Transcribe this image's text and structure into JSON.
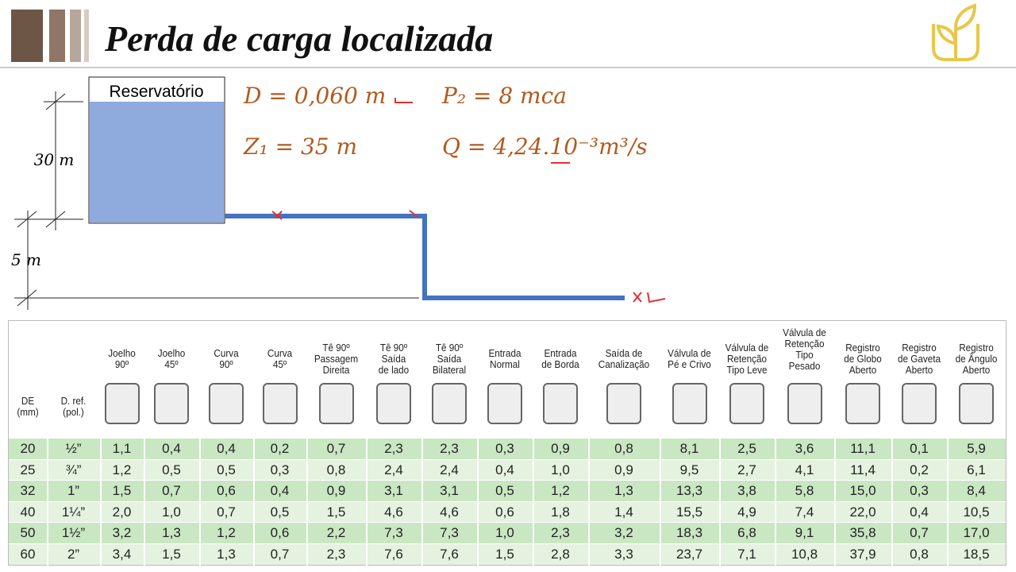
{
  "header": {
    "title": "Perda de carga localizada"
  },
  "diagram": {
    "reservoir": "Reservatório",
    "height_top": "30 m",
    "height_bottom": "5 m"
  },
  "equations": [
    "D = 0,060 m",
    "P₂ = 8 mca",
    "Z₁ = 35 m",
    "Q = 4,24.10⁻³m³/s"
  ],
  "table": {
    "headers": [
      [
        "DE",
        "(mm)"
      ],
      [
        "D. ref.",
        "(pol.)"
      ],
      [
        "Joelho",
        "90º"
      ],
      [
        "Joelho",
        "45º"
      ],
      [
        "Curva",
        "90º"
      ],
      [
        "Curva",
        "45º"
      ],
      [
        "Tê 90º",
        "Passagem",
        "Direita"
      ],
      [
        "Tê 90º",
        "Saída",
        "de lado"
      ],
      [
        "Tê 90º",
        "Saída",
        "Bilateral"
      ],
      [
        "Entrada",
        "Normal"
      ],
      [
        "Entrada",
        "de Borda"
      ],
      [
        "Saída de",
        "Canalização"
      ],
      [
        "Válvula de",
        "Pé e Crivo"
      ],
      [
        "Válvula de",
        "Retenção",
        "Tipo Leve"
      ],
      [
        "Válvula de",
        "Retenção",
        "Tipo",
        "Pesado"
      ],
      [
        "Registro",
        "de Globo",
        "Aberto"
      ],
      [
        "Registro",
        "de Gaveta",
        "Aberto"
      ],
      [
        "Registro",
        "de Ângulo",
        "Aberto"
      ]
    ],
    "rows": [
      [
        "20",
        "½”",
        "1,1",
        "0,4",
        "0,4",
        "0,2",
        "0,7",
        "2,3",
        "2,3",
        "0,3",
        "0,9",
        "0,8",
        "8,1",
        "2,5",
        "3,6",
        "11,1",
        "0,1",
        "5,9"
      ],
      [
        "25",
        "¾”",
        "1,2",
        "0,5",
        "0,5",
        "0,3",
        "0,8",
        "2,4",
        "2,4",
        "0,4",
        "1,0",
        "0,9",
        "9,5",
        "2,7",
        "4,1",
        "11,4",
        "0,2",
        "6,1"
      ],
      [
        "32",
        "1”",
        "1,5",
        "0,7",
        "0,6",
        "0,4",
        "0,9",
        "3,1",
        "3,1",
        "0,5",
        "1,2",
        "1,3",
        "13,3",
        "3,8",
        "5,8",
        "15,0",
        "0,3",
        "8,4"
      ],
      [
        "40",
        "1¼”",
        "2,0",
        "1,0",
        "0,7",
        "0,5",
        "1,5",
        "4,6",
        "4,6",
        "0,6",
        "1,8",
        "1,4",
        "15,5",
        "4,9",
        "7,4",
        "22,0",
        "0,4",
        "10,5"
      ],
      [
        "50",
        "1½”",
        "3,2",
        "1,3",
        "1,2",
        "0,6",
        "2,2",
        "7,3",
        "7,3",
        "1,0",
        "2,3",
        "3,2",
        "18,3",
        "6,8",
        "9,1",
        "35,8",
        "0,7",
        "17,0"
      ],
      [
        "60",
        "2”",
        "3,4",
        "1,5",
        "1,3",
        "0,7",
        "2,3",
        "7,6",
        "7,6",
        "1,5",
        "2,8",
        "3,3",
        "23,7",
        "7,1",
        "10,8",
        "37,9",
        "0,8",
        "18,5"
      ]
    ]
  }
}
